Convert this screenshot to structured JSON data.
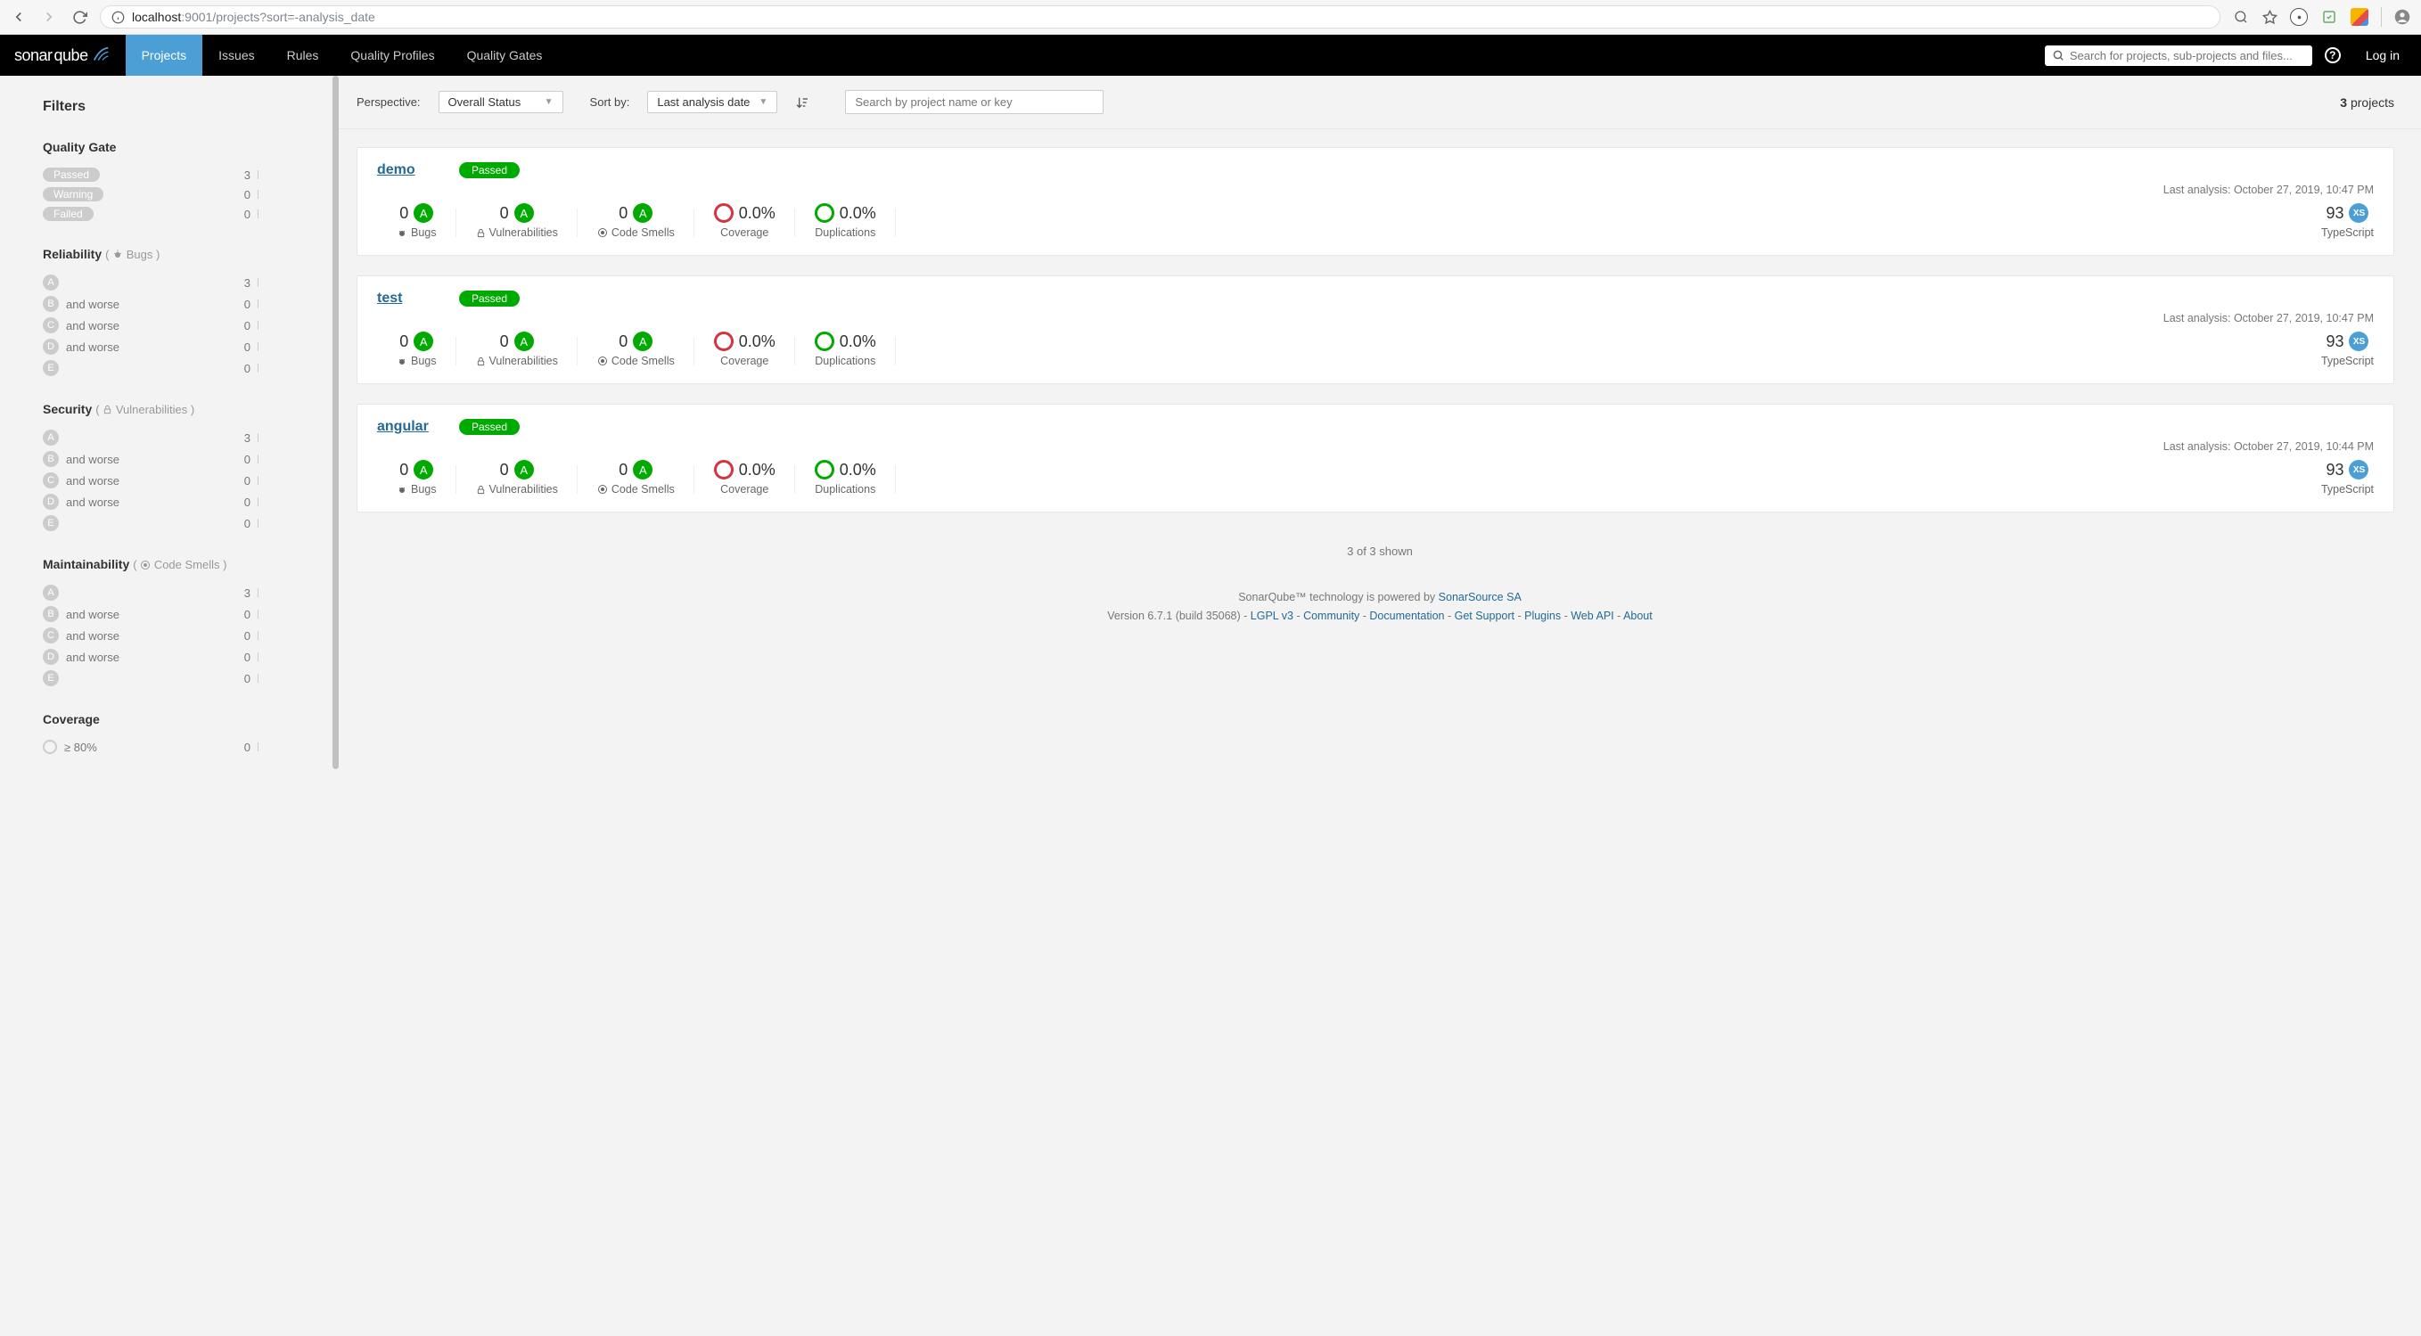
{
  "browser": {
    "url_host": "localhost",
    "url_port": ":9001",
    "url_path": "/projects?sort=-analysis_date"
  },
  "topbar": {
    "brand_left": "sonar",
    "brand_right": "qube",
    "nav": [
      "Projects",
      "Issues",
      "Rules",
      "Quality Profiles",
      "Quality Gates"
    ],
    "active_nav_index": 0,
    "search_placeholder": "Search for projects, sub-projects and files...",
    "login_label": "Log in"
  },
  "list_header": {
    "perspective_label": "Perspective:",
    "perspective_value": "Overall Status",
    "sort_label": "Sort by:",
    "sort_value": "Last analysis date",
    "search_placeholder": "Search by project name or key",
    "count": "3",
    "count_suffix": " projects"
  },
  "sidebar": {
    "title": "Filters",
    "sections": {
      "quality_gate": {
        "heading": "Quality Gate",
        "rows": [
          {
            "pill": "Passed",
            "count": "3",
            "bar": 100
          },
          {
            "pill": "Warning",
            "count": "0",
            "bar": 0
          },
          {
            "pill": "Failed",
            "count": "0",
            "bar": 0
          }
        ]
      },
      "reliability": {
        "heading": "Reliability",
        "meta": "Bugs",
        "rows": [
          {
            "grade": "A",
            "label": "",
            "count": "3",
            "bar": 100
          },
          {
            "grade": "B",
            "label": "and worse",
            "count": "0",
            "bar": 0
          },
          {
            "grade": "C",
            "label": "and worse",
            "count": "0",
            "bar": 0
          },
          {
            "grade": "D",
            "label": "and worse",
            "count": "0",
            "bar": 0
          },
          {
            "grade": "E",
            "label": "",
            "count": "0",
            "bar": 0
          }
        ]
      },
      "security": {
        "heading": "Security",
        "meta": "Vulnerabilities",
        "rows": [
          {
            "grade": "A",
            "label": "",
            "count": "3",
            "bar": 100
          },
          {
            "grade": "B",
            "label": "and worse",
            "count": "0",
            "bar": 0
          },
          {
            "grade": "C",
            "label": "and worse",
            "count": "0",
            "bar": 0
          },
          {
            "grade": "D",
            "label": "and worse",
            "count": "0",
            "bar": 0
          },
          {
            "grade": "E",
            "label": "",
            "count": "0",
            "bar": 0
          }
        ]
      },
      "maintainability": {
        "heading": "Maintainability",
        "meta": "Code Smells",
        "rows": [
          {
            "grade": "A",
            "label": "",
            "count": "3",
            "bar": 100
          },
          {
            "grade": "B",
            "label": "and worse",
            "count": "0",
            "bar": 0
          },
          {
            "grade": "C",
            "label": "and worse",
            "count": "0",
            "bar": 0
          },
          {
            "grade": "D",
            "label": "and worse",
            "count": "0",
            "bar": 0
          },
          {
            "grade": "E",
            "label": "",
            "count": "0",
            "bar": 0
          }
        ]
      },
      "coverage": {
        "heading": "Coverage",
        "rows": [
          {
            "ring": true,
            "label": "≥ 80%",
            "count": "0",
            "bar": 0
          }
        ]
      }
    }
  },
  "projects": [
    {
      "name": "demo",
      "status": "Passed",
      "analysis": "Last analysis: October 27, 2019, 10:47 PM",
      "bugs": "0",
      "bugs_grade": "A",
      "vuln": "0",
      "vuln_grade": "A",
      "smells": "0",
      "smells_grade": "A",
      "coverage": "0.0%",
      "duplications": "0.0%",
      "size": "93",
      "size_badge": "XS",
      "language": "TypeScript"
    },
    {
      "name": "test",
      "status": "Passed",
      "analysis": "Last analysis: October 27, 2019, 10:47 PM",
      "bugs": "0",
      "bugs_grade": "A",
      "vuln": "0",
      "vuln_grade": "A",
      "smells": "0",
      "smells_grade": "A",
      "coverage": "0.0%",
      "duplications": "0.0%",
      "size": "93",
      "size_badge": "XS",
      "language": "TypeScript"
    },
    {
      "name": "angular",
      "status": "Passed",
      "analysis": "Last analysis: October 27, 2019, 10:44 PM",
      "bugs": "0",
      "bugs_grade": "A",
      "vuln": "0",
      "vuln_grade": "A",
      "smells": "0",
      "smells_grade": "A",
      "coverage": "0.0%",
      "duplications": "0.0%",
      "size": "93",
      "size_badge": "XS",
      "language": "TypeScript"
    }
  ],
  "metric_labels": {
    "bugs": "Bugs",
    "vuln": "Vulnerabilities",
    "smells": "Code Smells",
    "coverage": "Coverage",
    "duplications": "Duplications"
  },
  "shown_text": "3 of 3 shown",
  "footer": {
    "line1_prefix": "SonarQube™ technology is powered by ",
    "line1_link": "SonarSource SA",
    "version": "Version 6.7.1 (build 35068) - ",
    "links": [
      "LGPL v3",
      "Community",
      "Documentation",
      "Get Support",
      "Plugins",
      "Web API",
      "About"
    ]
  },
  "colors": {
    "primary_blue": "#4b9fd5",
    "link_blue": "#236a97",
    "pass_green": "#00aa00",
    "fail_red": "#d4333f",
    "gray_bg": "#f3f3f3",
    "gray_badge": "#cccccc"
  }
}
